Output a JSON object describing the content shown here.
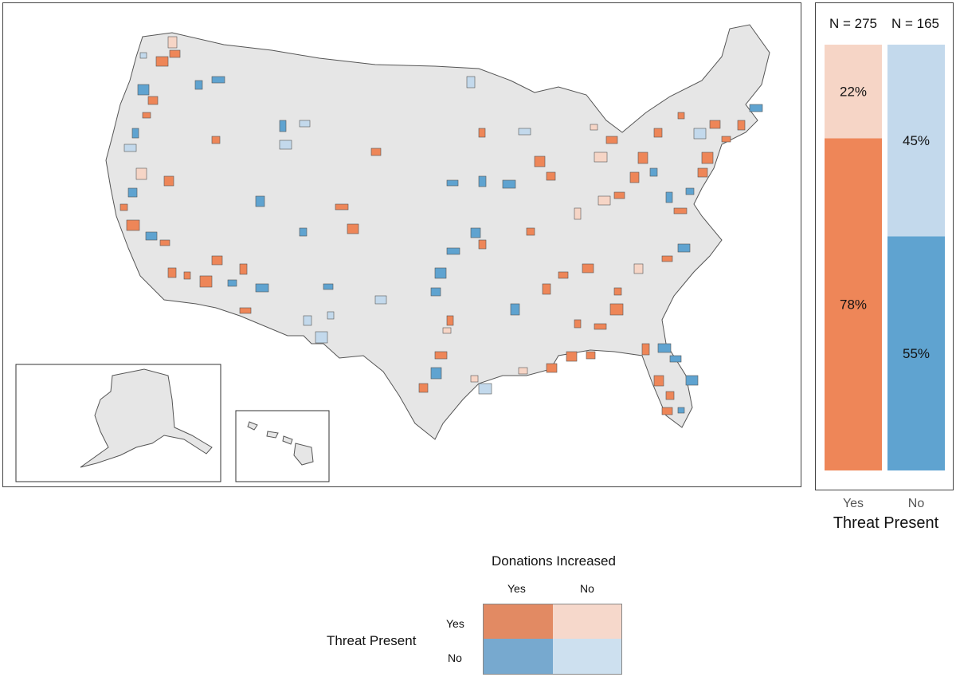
{
  "map": {
    "colors": {
      "yes_yes": "#ee8658",
      "yes_no": "#f6d5c6",
      "no_yes": "#5fa3d0",
      "no_no": "#c3d9ec",
      "land": "#e6e6e6",
      "border": "#555555"
    }
  },
  "bar_chart": {
    "n_labels": [
      "N = 275",
      "N = 165"
    ],
    "x_axis_title": "Threat Present",
    "chart_data": {
      "type": "bar",
      "stacked": true,
      "categories": [
        "Yes",
        "No"
      ],
      "series": [
        {
          "category": "Yes",
          "segments": [
            {
              "donations_increased": "Yes",
              "value": 78,
              "label": "78%",
              "color": "#ee8658"
            },
            {
              "donations_increased": "No",
              "value": 22,
              "label": "22%",
              "color": "#f6d5c6"
            }
          ]
        },
        {
          "category": "No",
          "segments": [
            {
              "donations_increased": "Yes",
              "value": 55,
              "label": "55%",
              "color": "#5fa3d0"
            },
            {
              "donations_increased": "No",
              "value": 45,
              "label": "45%",
              "color": "#c3d9ec"
            }
          ]
        }
      ],
      "ylim": [
        0,
        100
      ]
    }
  },
  "legend": {
    "title": "Donations Increased",
    "col_labels": [
      "Yes",
      "No"
    ],
    "row_title": "Threat Present",
    "row_labels": [
      "Yes",
      "No"
    ],
    "cells": [
      [
        "#e28a63",
        "#f6d8cb"
      ],
      [
        "#77a9cf",
        "#cde0ef"
      ]
    ]
  }
}
